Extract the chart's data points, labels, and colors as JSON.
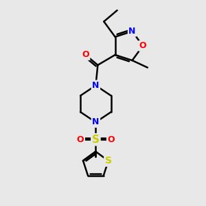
{
  "bg_color": "#e8e8e8",
  "bond_color": "#000000",
  "bond_width": 1.8,
  "atom_colors": {
    "N": "#0000ff",
    "O": "#ff0000",
    "S": "#cccc00",
    "C": "#000000"
  },
  "font_size": 9,
  "fig_size": [
    3.0,
    3.0
  ],
  "dpi": 100
}
